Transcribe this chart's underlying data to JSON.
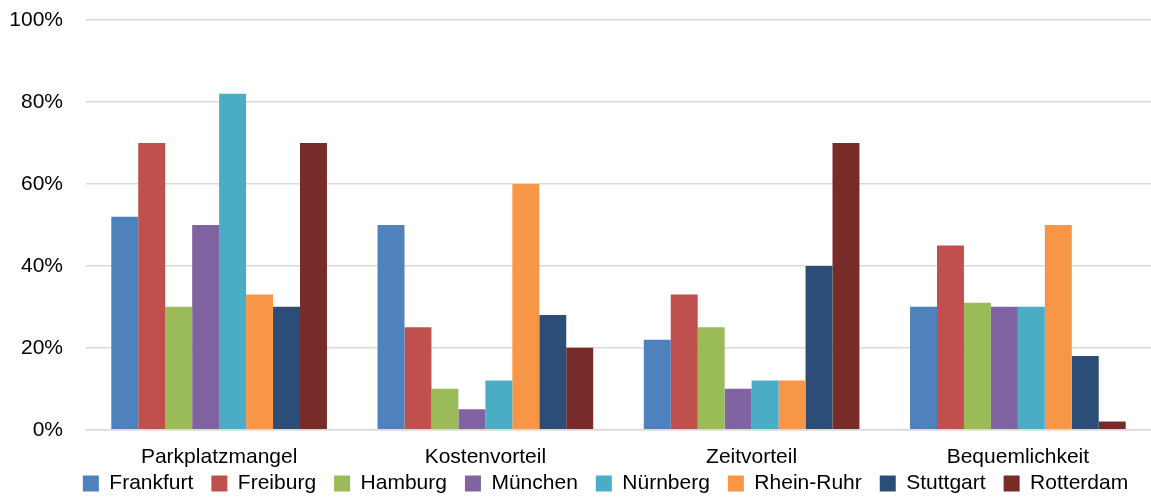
{
  "chart_data": {
    "type": "bar",
    "categories": [
      "Parkplatzmangel",
      "Kostenvorteil",
      "Zeitvorteil",
      "Bequemlichkeit"
    ],
    "series": [
      {
        "name": "Frankfurt",
        "color": "#4f81bd",
        "values": [
          52,
          50,
          22,
          30
        ]
      },
      {
        "name": "Freiburg",
        "color": "#c0504d",
        "values": [
          70,
          25,
          33,
          45
        ]
      },
      {
        "name": "Hamburg",
        "color": "#9bbb59",
        "values": [
          30,
          10,
          25,
          31
        ]
      },
      {
        "name": "München",
        "color": "#8064a2",
        "values": [
          50,
          5,
          10,
          30
        ]
      },
      {
        "name": "Nürnberg",
        "color": "#4bacc6",
        "values": [
          82,
          12,
          12,
          30
        ]
      },
      {
        "name": "Rhein-Ruhr",
        "color": "#f79646",
        "values": [
          33,
          60,
          12,
          50
        ]
      },
      {
        "name": "Stuttgart",
        "color": "#2c4d75",
        "values": [
          30,
          28,
          40,
          18
        ]
      },
      {
        "name": "Rotterdam",
        "color": "#772c2a",
        "values": [
          70,
          20,
          70,
          2
        ]
      }
    ],
    "ylim": [
      0,
      100
    ],
    "yticks": [
      {
        "value": 0,
        "label": "0%"
      },
      {
        "value": 20,
        "label": "20%"
      },
      {
        "value": 40,
        "label": "40%"
      },
      {
        "value": 60,
        "label": "60%"
      },
      {
        "value": 80,
        "label": "80%"
      },
      {
        "value": 100,
        "label": "100%"
      }
    ],
    "grid": "y",
    "legend": "bottom"
  }
}
